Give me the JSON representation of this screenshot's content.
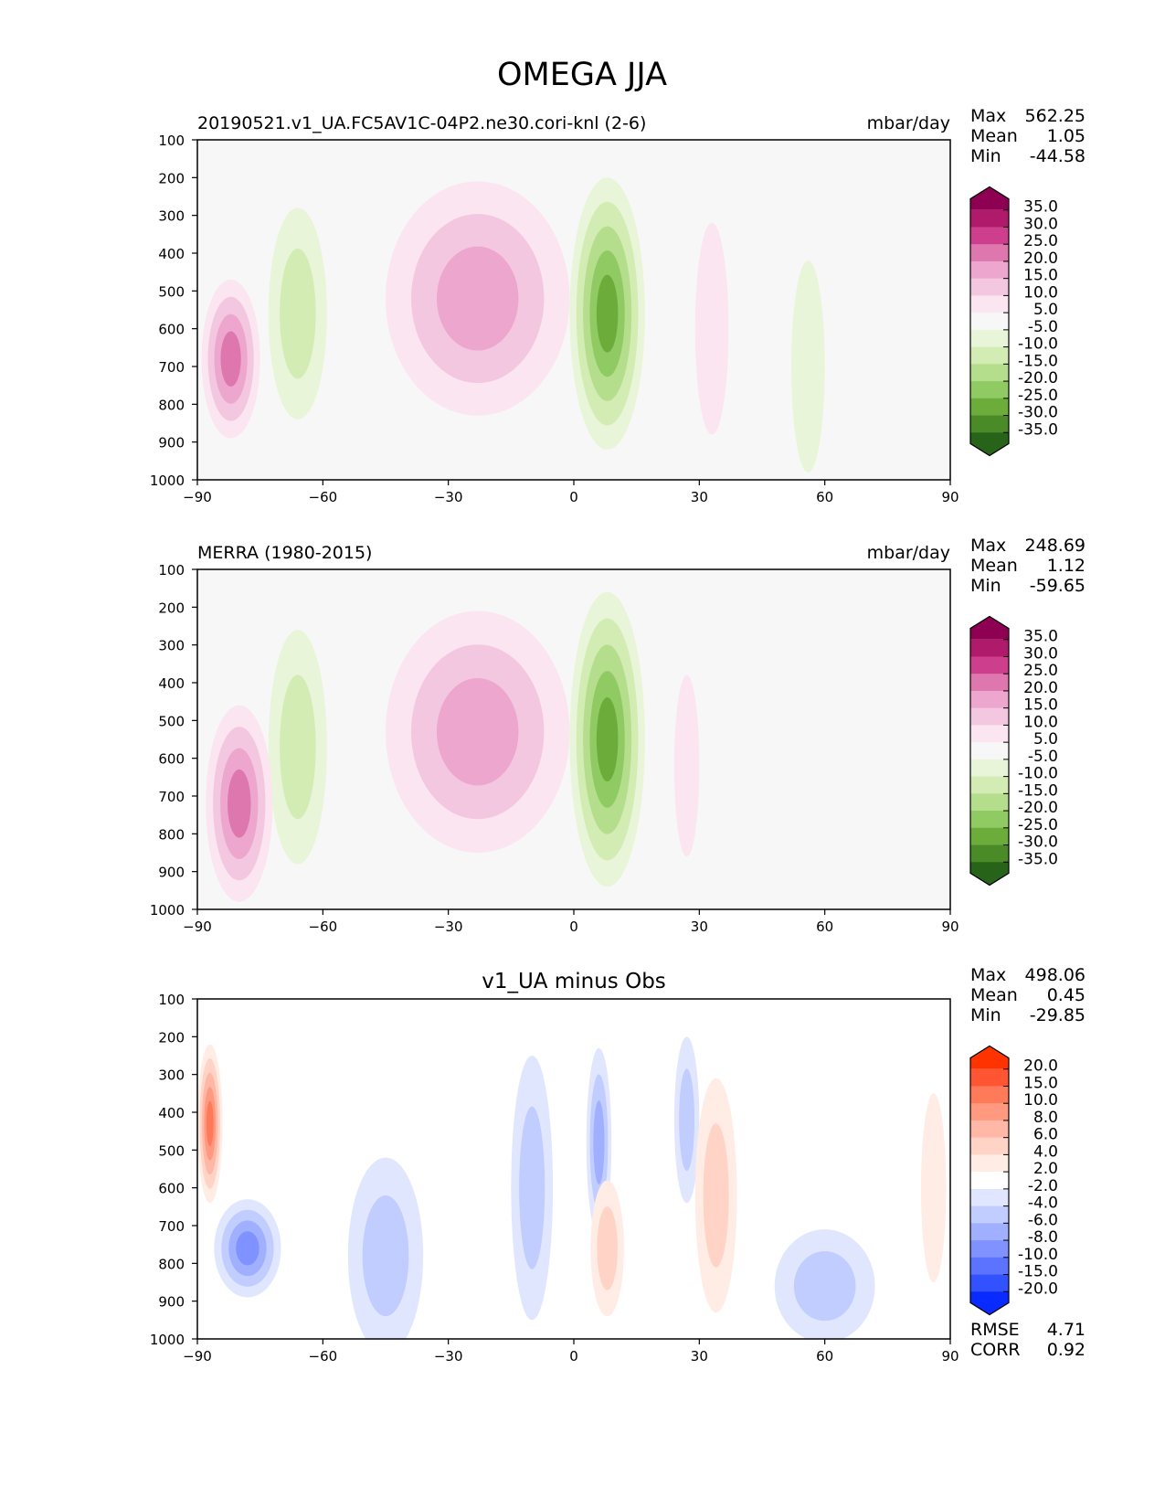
{
  "figure_title": "OMEGA JJA",
  "chart_data": [
    {
      "type": "contour",
      "left_title": "20190521.v1_UA.FC5AV1C-04P2.ne30.cori-knl (2-6)",
      "center_title": "",
      "units": "mbar/day",
      "xticks": [
        "−90",
        "−60",
        "−30",
        "0",
        "30",
        "60",
        "90"
      ],
      "yticks": [
        "100",
        "200",
        "300",
        "400",
        "500",
        "600",
        "700",
        "800",
        "900",
        "1000"
      ],
      "xlim": [
        -90,
        90
      ],
      "ylim": [
        100,
        1000
      ],
      "stats": [
        {
          "label": "Max",
          "value": "562.25"
        },
        {
          "label": "Mean",
          "value": "1.05"
        },
        {
          "label": "Min",
          "value": "-44.58"
        }
      ],
      "colorbar_ticks": [
        "35.0",
        "30.0",
        "25.0",
        "20.0",
        "15.0",
        "10.0",
        "5.0",
        "-5.0",
        "-10.0",
        "-15.0",
        "-20.0",
        "-25.0",
        "-30.0",
        "-35.0"
      ],
      "colorbar_colors": [
        "#8e0152",
        "#b01a6a",
        "#cd3f8c",
        "#de77ae",
        "#eda6cd",
        "#f4c7e1",
        "#fbe5f0",
        "#f7f7f7",
        "#e8f5d8",
        "#d2ecb4",
        "#b4de8c",
        "#8fca63",
        "#6bac3b",
        "#4a8b28",
        "#276419"
      ],
      "regions": [
        {
          "lat": -23,
          "p": 520,
          "wlat": 22,
          "hp": 620,
          "level": 3
        },
        {
          "lat": 8,
          "p": 560,
          "wlat": 9,
          "hp": 720,
          "level": -5
        },
        {
          "lat": -66,
          "p": 560,
          "wlat": 7,
          "hp": 560,
          "level": -2
        },
        {
          "lat": -82,
          "p": 680,
          "wlat": 7,
          "hp": 420,
          "level": 4
        },
        {
          "lat": 33,
          "p": 600,
          "wlat": 4,
          "hp": 560,
          "level": 1
        },
        {
          "lat": 56,
          "p": 700,
          "wlat": 4,
          "hp": 560,
          "level": -1
        }
      ]
    },
    {
      "type": "contour",
      "left_title": "MERRA (1980-2015)",
      "center_title": "",
      "units": "mbar/day",
      "xticks": [
        "−90",
        "−60",
        "−30",
        "0",
        "30",
        "60",
        "90"
      ],
      "yticks": [
        "100",
        "200",
        "300",
        "400",
        "500",
        "600",
        "700",
        "800",
        "900",
        "1000"
      ],
      "xlim": [
        -90,
        90
      ],
      "ylim": [
        100,
        1000
      ],
      "stats": [
        {
          "label": "Max",
          "value": "248.69"
        },
        {
          "label": "Mean",
          "value": "1.12"
        },
        {
          "label": "Min",
          "value": "-59.65"
        }
      ],
      "colorbar_ticks": [
        "35.0",
        "30.0",
        "25.0",
        "20.0",
        "15.0",
        "10.0",
        "5.0",
        "-5.0",
        "-10.0",
        "-15.0",
        "-20.0",
        "-25.0",
        "-30.0",
        "-35.0"
      ],
      "colorbar_colors": [
        "#8e0152",
        "#b01a6a",
        "#cd3f8c",
        "#de77ae",
        "#eda6cd",
        "#f4c7e1",
        "#fbe5f0",
        "#f7f7f7",
        "#e8f5d8",
        "#d2ecb4",
        "#b4de8c",
        "#8fca63",
        "#6bac3b",
        "#4a8b28",
        "#276419"
      ],
      "regions": [
        {
          "lat": -23,
          "p": 530,
          "wlat": 22,
          "hp": 640,
          "level": 3
        },
        {
          "lat": 8,
          "p": 550,
          "wlat": 9,
          "hp": 780,
          "level": -5
        },
        {
          "lat": -66,
          "p": 570,
          "wlat": 7,
          "hp": 620,
          "level": -2
        },
        {
          "lat": -80,
          "p": 720,
          "wlat": 8,
          "hp": 520,
          "level": 4
        },
        {
          "lat": 27,
          "p": 620,
          "wlat": 3,
          "hp": 480,
          "level": 1
        }
      ]
    },
    {
      "type": "contour",
      "left_title": "",
      "center_title": "v1_UA minus Obs",
      "units": "",
      "xticks": [
        "−90",
        "−60",
        "−30",
        "0",
        "30",
        "60",
        "90"
      ],
      "yticks": [
        "100",
        "200",
        "300",
        "400",
        "500",
        "600",
        "700",
        "800",
        "900",
        "1000"
      ],
      "xlim": [
        -90,
        90
      ],
      "ylim": [
        100,
        1000
      ],
      "stats": [
        {
          "label": "Max",
          "value": "498.06"
        },
        {
          "label": "Mean",
          "value": "0.45"
        },
        {
          "label": "Min",
          "value": "-29.85"
        }
      ],
      "bottom_stats": [
        {
          "label": "RMSE",
          "value": "4.71"
        },
        {
          "label": "CORR",
          "value": "0.92"
        }
      ],
      "colorbar_ticks": [
        "20.0",
        "15.0",
        "10.0",
        "8.0",
        "6.0",
        "4.0",
        "2.0",
        "-2.0",
        "-4.0",
        "-6.0",
        "-8.0",
        "-10.0",
        "-15.0",
        "-20.0"
      ],
      "colorbar_colors": [
        "#ff3300",
        "#ff5533",
        "#ff7a59",
        "#ff9a80",
        "#ffb8a6",
        "#ffd4c7",
        "#ffece5",
        "#ffffff",
        "#e1e6ff",
        "#c2cdff",
        "#a0b0ff",
        "#7f92ff",
        "#5c73ff",
        "#3352ff",
        "#0a2bff"
      ],
      "regions": [
        {
          "lat": -87,
          "p": 430,
          "wlat": 3,
          "hp": 420,
          "level": 5
        },
        {
          "lat": -78,
          "p": 760,
          "wlat": 8,
          "hp": 260,
          "level": -4
        },
        {
          "lat": -45,
          "p": 780,
          "wlat": 9,
          "hp": 520,
          "level": -2
        },
        {
          "lat": -10,
          "p": 600,
          "wlat": 5,
          "hp": 700,
          "level": -2
        },
        {
          "lat": 6,
          "p": 480,
          "wlat": 3,
          "hp": 500,
          "level": -3
        },
        {
          "lat": 8,
          "p": 760,
          "wlat": 4,
          "hp": 360,
          "level": 2
        },
        {
          "lat": 27,
          "p": 420,
          "wlat": 3,
          "hp": 440,
          "level": -2
        },
        {
          "lat": 34,
          "p": 620,
          "wlat": 5,
          "hp": 620,
          "level": 2
        },
        {
          "lat": 60,
          "p": 860,
          "wlat": 12,
          "hp": 300,
          "level": -2
        },
        {
          "lat": 86,
          "p": 600,
          "wlat": 3,
          "hp": 500,
          "level": 1
        }
      ]
    }
  ]
}
